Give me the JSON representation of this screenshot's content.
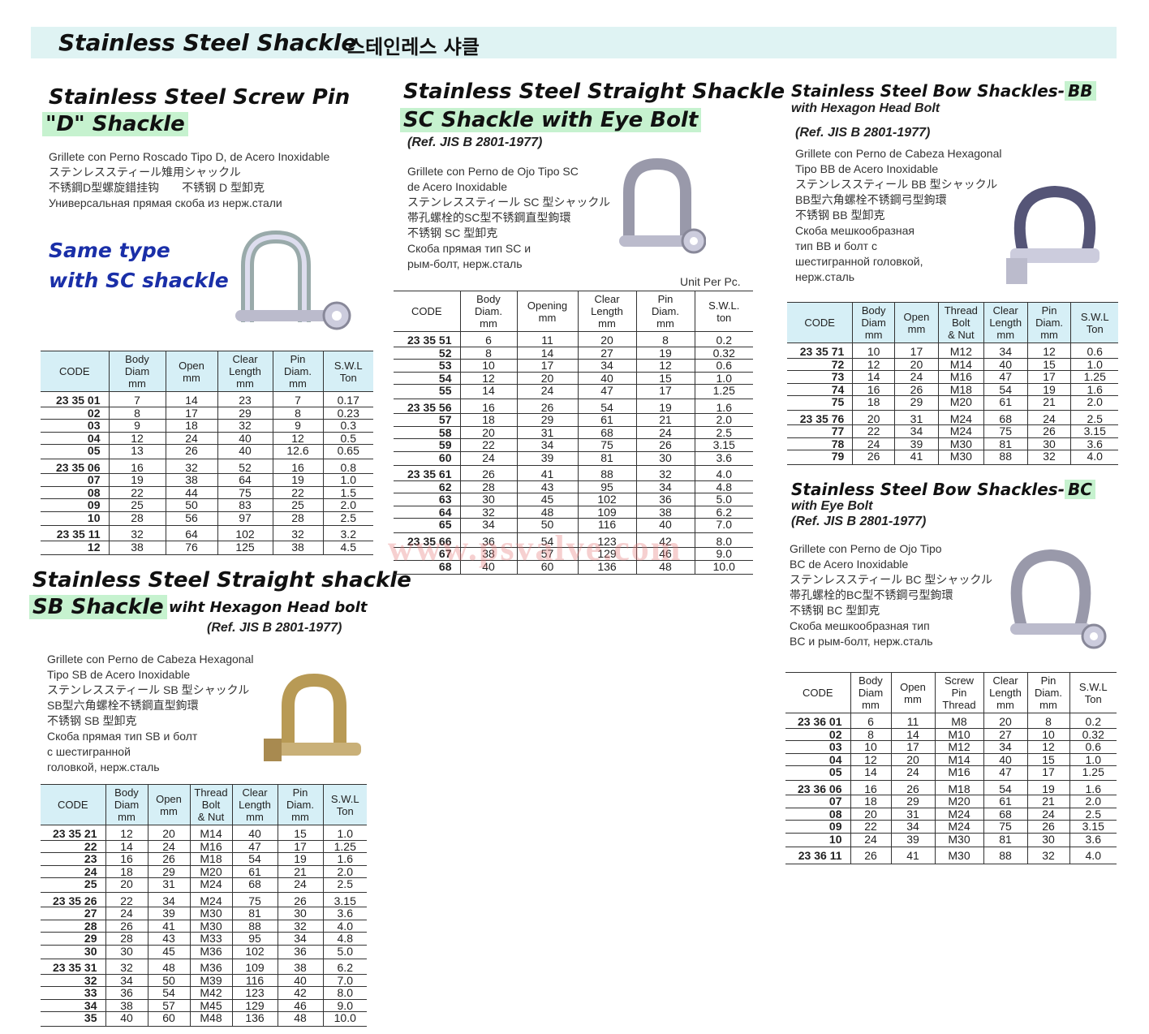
{
  "header": {
    "title": "Stainless Steel Shackle",
    "title_ko": "스테인레스 샤클"
  },
  "watermark": "www.psvalve.com",
  "d_shackle": {
    "title1": "Stainless Steel Screw Pin",
    "title2": "\"D\" Shackle",
    "desc": [
      "Grillete con Perno Roscado Tipo D, de Acero Inoxidable",
      "ステンレススティール雉用シャックル",
      "不锈鋼D型螺旋錯挂钩　　不锈钢 D 型卸克",
      "Универсальная прямая скоба из нерж.стали"
    ],
    "note": [
      "Same type",
      "with SC shackle"
    ],
    "table": {
      "headers": [
        "CODE",
        "Body\nDiam\nmm",
        "Open\nmm",
        "Clear\nLength\nmm",
        "Pin\nDiam.\nmm",
        "S.W.L\nTon"
      ],
      "groups": [
        [
          [
            "23 35 01",
            "7",
            "14",
            "23",
            "7",
            "0.17"
          ],
          [
            "02",
            "8",
            "17",
            "29",
            "8",
            "0.23"
          ],
          [
            "03",
            "9",
            "18",
            "32",
            "9",
            "0.3"
          ],
          [
            "04",
            "12",
            "24",
            "40",
            "12",
            "0.5"
          ],
          [
            "05",
            "13",
            "26",
            "40",
            "12.6",
            "0.65"
          ]
        ],
        [
          [
            "23 35 06",
            "16",
            "32",
            "52",
            "16",
            "0.8"
          ],
          [
            "07",
            "19",
            "38",
            "64",
            "19",
            "1.0"
          ],
          [
            "08",
            "22",
            "44",
            "75",
            "22",
            "1.5"
          ],
          [
            "09",
            "25",
            "50",
            "83",
            "25",
            "2.0"
          ],
          [
            "10",
            "28",
            "56",
            "97",
            "28",
            "2.5"
          ]
        ],
        [
          [
            "23 35 11",
            "32",
            "64",
            "102",
            "32",
            "3.2"
          ],
          [
            "12",
            "38",
            "76",
            "125",
            "38",
            "4.5"
          ]
        ]
      ]
    }
  },
  "sb_shackle": {
    "title1": "Stainless Steel  Straight shackle",
    "title2": "SB Shackle",
    "subtitle": "wiht Hexagon Head bolt",
    "ref": "(Ref. JIS B 2801-1977)",
    "desc": [
      "Grillete con Perno de Cabeza Hexagonal",
      "Tipo SB de Acero Inoxidable",
      "ステンレススティール SB 型シャックル",
      "SB型六角螺栓不锈鋼直型鉤環",
      "不锈钢 SB 型卸克",
      "Скоба прямая тип SB и болт",
      "с шестигранной",
      "головкой, нерж.сталь"
    ],
    "table": {
      "headers": [
        "CODE",
        "Body\nDiam\nmm",
        "Open\nmm",
        "Thread\nBolt\n& Nut",
        "Clear\nLength\nmm",
        "Pin\nDiam.\nmm",
        "S.W.L\nTon"
      ],
      "groups": [
        [
          [
            "23 35 21",
            "12",
            "20",
            "M14",
            "40",
            "15",
            "1.0"
          ],
          [
            "22",
            "14",
            "24",
            "M16",
            "47",
            "17",
            "1.25"
          ],
          [
            "23",
            "16",
            "26",
            "M18",
            "54",
            "19",
            "1.6"
          ],
          [
            "24",
            "18",
            "29",
            "M20",
            "61",
            "21",
            "2.0"
          ],
          [
            "25",
            "20",
            "31",
            "M24",
            "68",
            "24",
            "2.5"
          ]
        ],
        [
          [
            "23 35 26",
            "22",
            "34",
            "M24",
            "75",
            "26",
            "3.15"
          ],
          [
            "27",
            "24",
            "39",
            "M30",
            "81",
            "30",
            "3.6"
          ],
          [
            "28",
            "26",
            "41",
            "M30",
            "88",
            "32",
            "4.0"
          ],
          [
            "29",
            "28",
            "43",
            "M33",
            "95",
            "34",
            "4.8"
          ],
          [
            "30",
            "30",
            "45",
            "M36",
            "102",
            "36",
            "5.0"
          ]
        ],
        [
          [
            "23 35 31",
            "32",
            "48",
            "M36",
            "109",
            "38",
            "6.2"
          ],
          [
            "32",
            "34",
            "50",
            "M39",
            "116",
            "40",
            "7.0"
          ],
          [
            "33",
            "36",
            "54",
            "M42",
            "123",
            "42",
            "8.0"
          ],
          [
            "34",
            "38",
            "57",
            "M45",
            "129",
            "46",
            "9.0"
          ],
          [
            "35",
            "40",
            "60",
            "M48",
            "136",
            "48",
            "10.0"
          ]
        ]
      ]
    }
  },
  "sc_shackle": {
    "title1": "Stainless Steel Straight Shackle",
    "title2": "SC Shackle with Eye Bolt",
    "ref": "(Ref. JIS B 2801-1977)",
    "desc": [
      "Grillete con Perno de Ojo Tipo SC",
      "de Acero Inoxidable",
      "ステンレススティール SC 型シャックル",
      "帯孔螺栓的SC型不锈鋼直型鉤環",
      "不锈钢 SC 型卸克",
      "Скоба прямая тип SC и",
      "рым-болт, нерж.сталь"
    ],
    "unit": "Unit Per Pc.",
    "table": {
      "headers": [
        "CODE",
        "Body\nDiam.\nmm",
        "Opening\nmm",
        "Clear\nLength\nmm",
        "Pin\nDiam.\nmm",
        "S.W.L.\nton"
      ],
      "groups": [
        [
          [
            "23 35 51",
            "6",
            "11",
            "20",
            "8",
            "0.2"
          ],
          [
            "52",
            "8",
            "14",
            "27",
            "19",
            "0.32"
          ],
          [
            "53",
            "10",
            "17",
            "34",
            "12",
            "0.6"
          ],
          [
            "54",
            "12",
            "20",
            "40",
            "15",
            "1.0"
          ],
          [
            "55",
            "14",
            "24",
            "47",
            "17",
            "1.25"
          ]
        ],
        [
          [
            "23 35 56",
            "16",
            "26",
            "54",
            "19",
            "1.6"
          ],
          [
            "57",
            "18",
            "29",
            "61",
            "21",
            "2.0"
          ],
          [
            "58",
            "20",
            "31",
            "68",
            "24",
            "2.5"
          ],
          [
            "59",
            "22",
            "34",
            "75",
            "26",
            "3.15"
          ],
          [
            "60",
            "24",
            "39",
            "81",
            "30",
            "3.6"
          ]
        ],
        [
          [
            "23 35 61",
            "26",
            "41",
            "88",
            "32",
            "4.0"
          ],
          [
            "62",
            "28",
            "43",
            "95",
            "34",
            "4.8"
          ],
          [
            "63",
            "30",
            "45",
            "102",
            "36",
            "5.0"
          ],
          [
            "64",
            "32",
            "48",
            "109",
            "38",
            "6.2"
          ],
          [
            "65",
            "34",
            "50",
            "116",
            "40",
            "7.0"
          ]
        ],
        [
          [
            "23 35 66",
            "36",
            "54",
            "123",
            "42",
            "8.0"
          ],
          [
            "67",
            "38",
            "57",
            "129",
            "46",
            "9.0"
          ],
          [
            "68",
            "40",
            "60",
            "136",
            "48",
            "10.0"
          ]
        ]
      ]
    }
  },
  "bb_shackle": {
    "title1": "Stainless Steel Bow Shackles-",
    "title_hl": "BB",
    "subtitle": "with Hexagon Head Bolt",
    "ref": "(Ref. JIS B 2801-1977)",
    "desc": [
      "Grillete con Perno de Cabeza Hexagonal",
      "Tipo BB de Acero Inoxidable",
      "ステンレススティール BB 型シャックル",
      "BB型六角螺栓不锈鋼弓型鉤環",
      "不锈钢 BB 型卸克",
      "Скоба мешкообразная",
      "тип BB и болт с",
      "шестигранной головкой,",
      "нерж.сталь"
    ],
    "table": {
      "headers": [
        "CODE",
        "Body\nDiam\nmm",
        "Open\nmm",
        "Thread\nBolt\n& Nut",
        "Clear\nLength\nmm",
        "Pin\nDiam.\nmm",
        "S.W.L\nTon"
      ],
      "groups": [
        [
          [
            "23 35 71",
            "10",
            "17",
            "M12",
            "34",
            "12",
            "0.6"
          ],
          [
            "72",
            "12",
            "20",
            "M14",
            "40",
            "15",
            "1.0"
          ],
          [
            "73",
            "14",
            "24",
            "M16",
            "47",
            "17",
            "1.25"
          ],
          [
            "74",
            "16",
            "26",
            "M18",
            "54",
            "19",
            "1.6"
          ],
          [
            "75",
            "18",
            "29",
            "M20",
            "61",
            "21",
            "2.0"
          ]
        ],
        [
          [
            "23 35 76",
            "20",
            "31",
            "M24",
            "68",
            "24",
            "2.5"
          ],
          [
            "77",
            "22",
            "34",
            "M24",
            "75",
            "26",
            "3.15"
          ],
          [
            "78",
            "24",
            "39",
            "M30",
            "81",
            "30",
            "3.6"
          ],
          [
            "79",
            "26",
            "41",
            "M30",
            "88",
            "32",
            "4.0"
          ]
        ]
      ]
    }
  },
  "bc_shackle": {
    "title1": "Stainless Steel Bow Shackles-",
    "title_hl": "BC",
    "subtitle": "with Eye Bolt",
    "ref": "(Ref. JIS B 2801-1977)",
    "desc": [
      "Grillete con Perno de Ojo Tipo",
      "BC de Acero Inoxidable",
      "ステンレススティール BC 型シャックル",
      "帯孔螺栓的BC型不锈鋼弓型鉤環",
      "不锈钢 BC 型卸克",
      "Скоба мешкообразная тип",
      "BC и рым-болт, нерж.сталь"
    ],
    "table": {
      "headers": [
        "CODE",
        "Body\nDiam\nmm",
        "Open\nmm",
        "Screw\nPin\nThread",
        "Clear\nLength\nmm",
        "Pin\nDiam.\nmm",
        "S.W.L\nTon"
      ],
      "groups": [
        [
          [
            "23 36 01",
            "6",
            "11",
            "M8",
            "20",
            "8",
            "0.2"
          ],
          [
            "02",
            "8",
            "14",
            "M10",
            "27",
            "10",
            "0.32"
          ],
          [
            "03",
            "10",
            "17",
            "M12",
            "34",
            "12",
            "0.6"
          ],
          [
            "04",
            "12",
            "20",
            "M14",
            "40",
            "15",
            "1.0"
          ],
          [
            "05",
            "14",
            "24",
            "M16",
            "47",
            "17",
            "1.25"
          ]
        ],
        [
          [
            "23 36 06",
            "16",
            "26",
            "M18",
            "54",
            "19",
            "1.6"
          ],
          [
            "07",
            "18",
            "29",
            "M20",
            "61",
            "21",
            "2.0"
          ],
          [
            "08",
            "20",
            "31",
            "M24",
            "68",
            "24",
            "2.5"
          ],
          [
            "09",
            "22",
            "34",
            "M24",
            "75",
            "26",
            "3.15"
          ],
          [
            "10",
            "24",
            "39",
            "M30",
            "81",
            "30",
            "3.6"
          ]
        ],
        [
          [
            "23 36 11",
            "26",
            "41",
            "M30",
            "88",
            "32",
            "4.0"
          ]
        ]
      ]
    }
  }
}
